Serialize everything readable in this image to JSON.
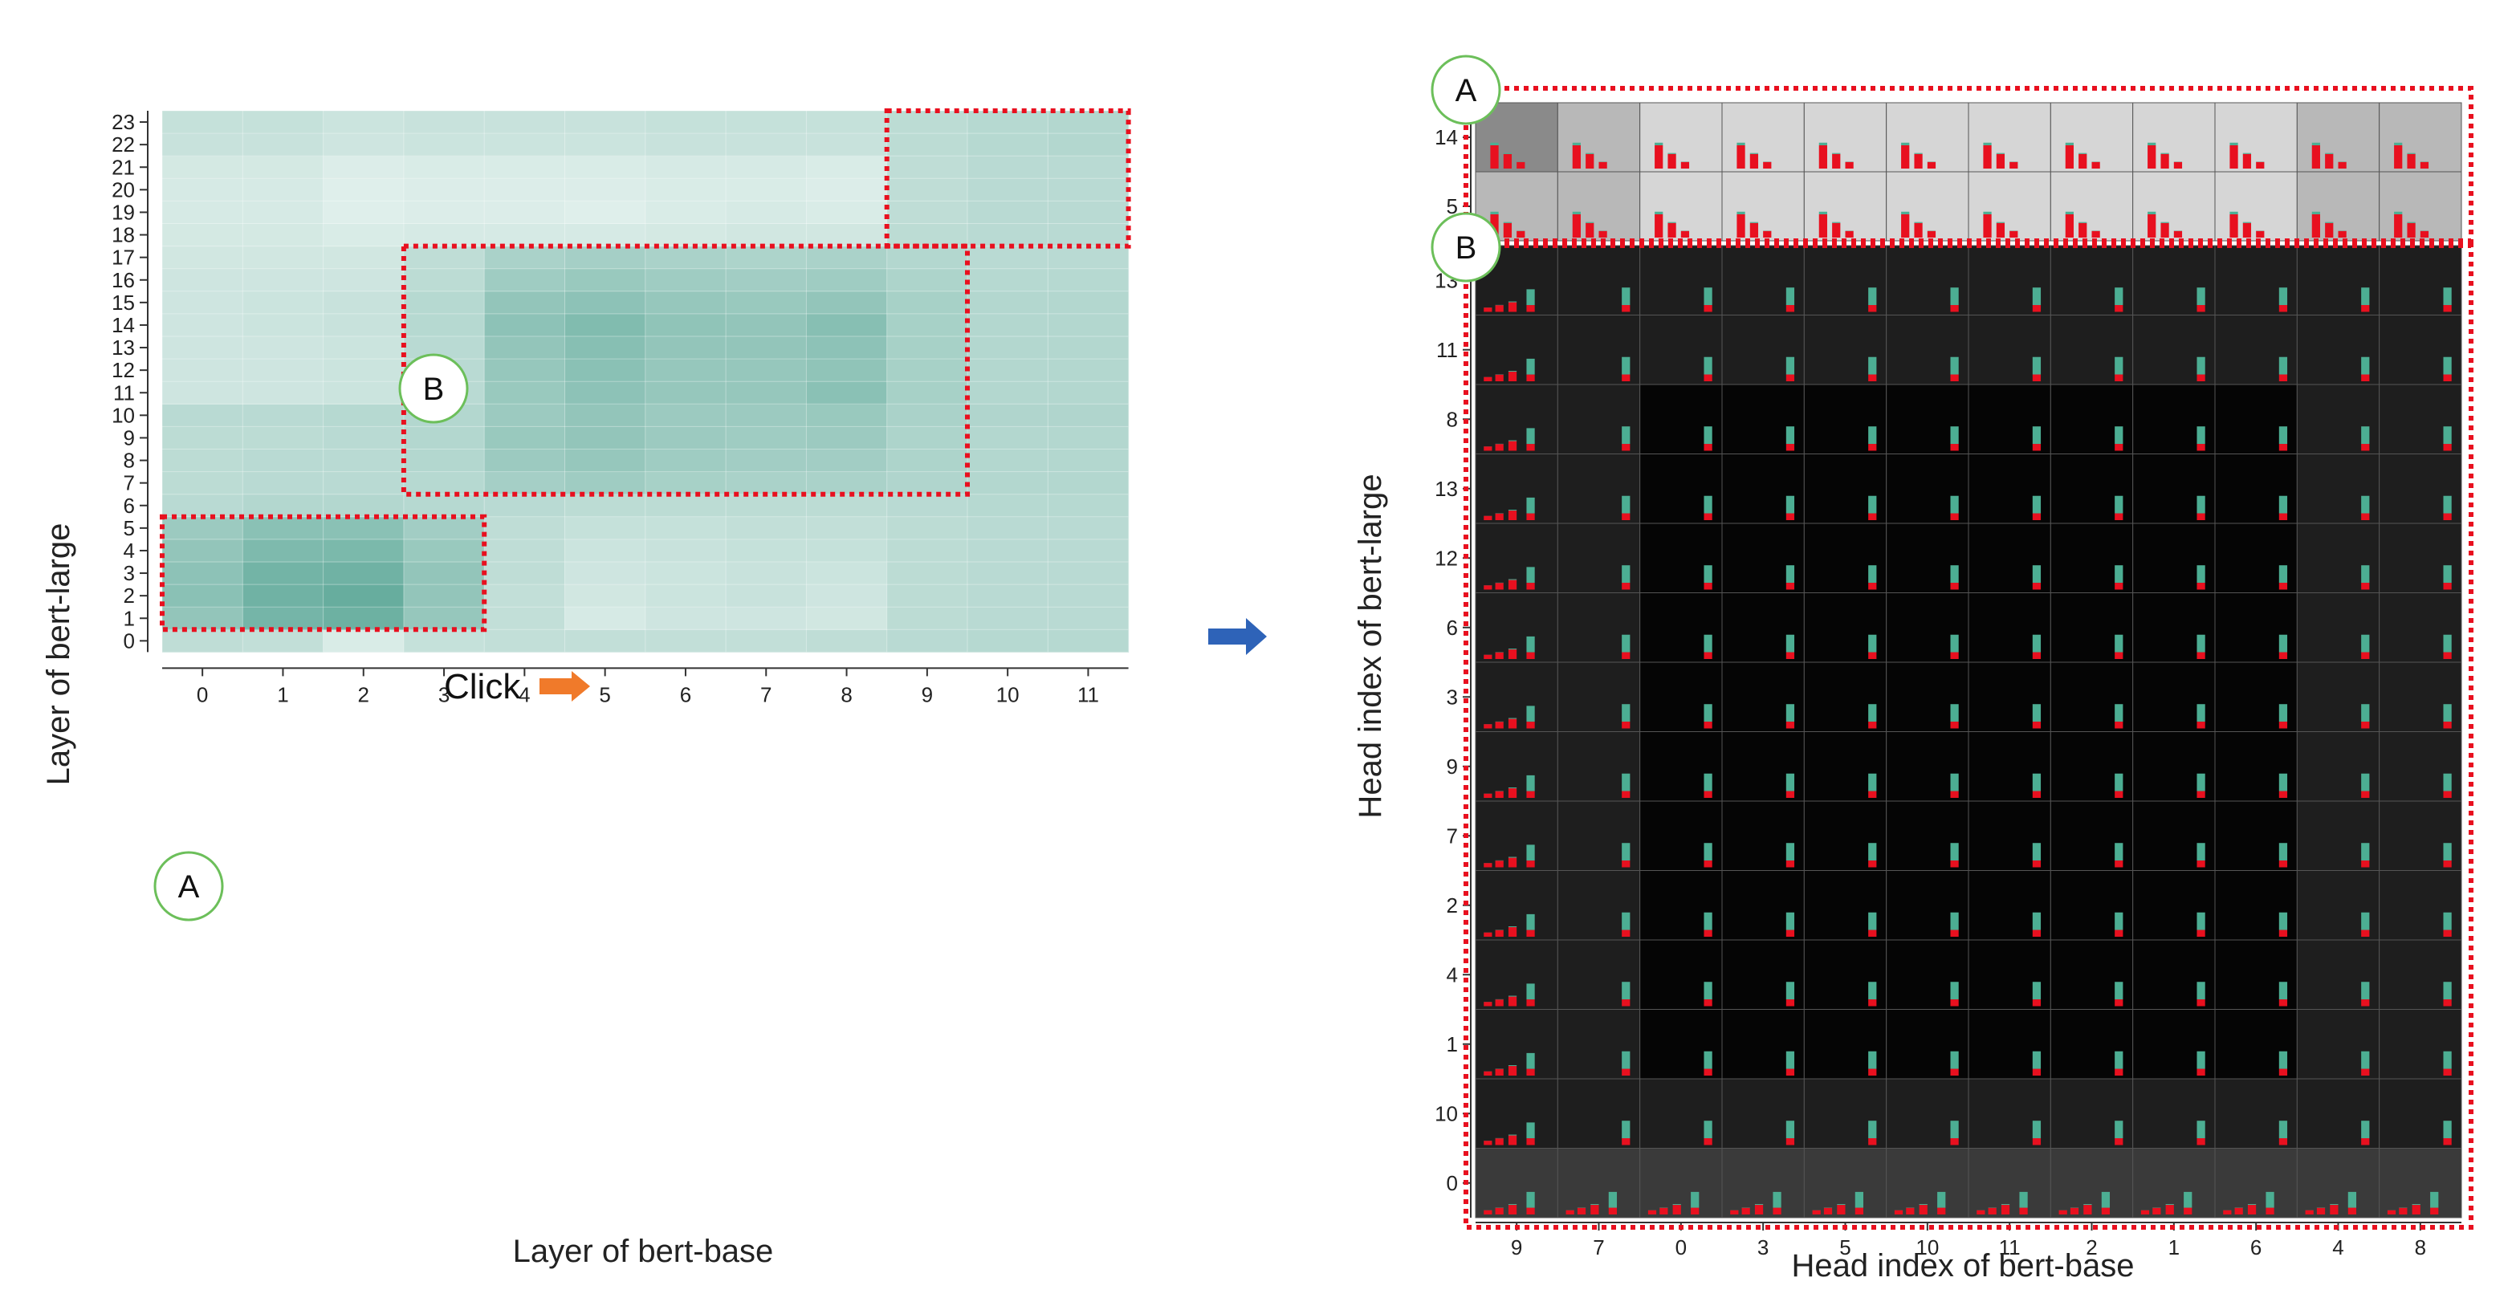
{
  "chart_data": [
    {
      "type": "heatmap",
      "xlabel": "Layer of bert-base",
      "ylabel": "Layer of bert-large",
      "x_ticks": [
        "0",
        "1",
        "2",
        "3",
        "4",
        "5",
        "6",
        "7",
        "8",
        "9",
        "10",
        "11"
      ],
      "y_ticks": [
        "0",
        "1",
        "2",
        "3",
        "4",
        "5",
        "6",
        "7",
        "8",
        "9",
        "10",
        "11",
        "12",
        "13",
        "14",
        "15",
        "16",
        "17",
        "18",
        "19",
        "20",
        "21",
        "22",
        "23"
      ],
      "color_scale": {
        "low": "#eef7f4",
        "high": "#5ba797"
      },
      "values_row_major_y0_to_y23": [
        [
          0.32,
          0.3,
          0.14,
          0.28,
          0.3,
          0.3,
          0.3,
          0.3,
          0.32,
          0.36,
          0.38,
          0.38
        ],
        [
          0.62,
          0.82,
          0.88,
          0.6,
          0.3,
          0.16,
          0.22,
          0.22,
          0.2,
          0.34,
          0.36,
          0.36
        ],
        [
          0.68,
          0.86,
          0.92,
          0.62,
          0.3,
          0.2,
          0.24,
          0.26,
          0.22,
          0.34,
          0.36,
          0.36
        ],
        [
          0.66,
          0.84,
          0.86,
          0.62,
          0.32,
          0.22,
          0.24,
          0.26,
          0.24,
          0.34,
          0.36,
          0.36
        ],
        [
          0.62,
          0.76,
          0.78,
          0.58,
          0.32,
          0.24,
          0.26,
          0.28,
          0.28,
          0.34,
          0.36,
          0.36
        ],
        [
          0.56,
          0.68,
          0.68,
          0.52,
          0.32,
          0.28,
          0.28,
          0.3,
          0.3,
          0.34,
          0.36,
          0.36
        ],
        [
          0.36,
          0.4,
          0.4,
          0.38,
          0.36,
          0.34,
          0.34,
          0.34,
          0.34,
          0.36,
          0.38,
          0.38
        ],
        [
          0.34,
          0.36,
          0.36,
          0.38,
          0.5,
          0.54,
          0.48,
          0.46,
          0.46,
          0.42,
          0.4,
          0.4
        ],
        [
          0.34,
          0.36,
          0.36,
          0.4,
          0.56,
          0.6,
          0.54,
          0.52,
          0.52,
          0.44,
          0.4,
          0.4
        ],
        [
          0.34,
          0.34,
          0.36,
          0.4,
          0.58,
          0.62,
          0.56,
          0.54,
          0.56,
          0.44,
          0.4,
          0.4
        ],
        [
          0.36,
          0.36,
          0.38,
          0.4,
          0.56,
          0.62,
          0.56,
          0.56,
          0.58,
          0.46,
          0.42,
          0.42
        ],
        [
          0.22,
          0.22,
          0.24,
          0.36,
          0.58,
          0.66,
          0.6,
          0.6,
          0.68,
          0.48,
          0.4,
          0.4
        ],
        [
          0.22,
          0.22,
          0.24,
          0.36,
          0.6,
          0.68,
          0.6,
          0.6,
          0.64,
          0.48,
          0.4,
          0.4
        ],
        [
          0.22,
          0.22,
          0.24,
          0.36,
          0.62,
          0.7,
          0.62,
          0.62,
          0.66,
          0.48,
          0.4,
          0.4
        ],
        [
          0.22,
          0.24,
          0.26,
          0.38,
          0.66,
          0.74,
          0.64,
          0.62,
          0.7,
          0.48,
          0.4,
          0.4
        ],
        [
          0.22,
          0.24,
          0.26,
          0.38,
          0.62,
          0.66,
          0.6,
          0.58,
          0.62,
          0.48,
          0.4,
          0.4
        ],
        [
          0.22,
          0.22,
          0.22,
          0.34,
          0.54,
          0.58,
          0.54,
          0.52,
          0.54,
          0.44,
          0.38,
          0.38
        ],
        [
          0.2,
          0.2,
          0.2,
          0.32,
          0.46,
          0.5,
          0.46,
          0.44,
          0.46,
          0.4,
          0.36,
          0.36
        ],
        [
          0.18,
          0.18,
          0.14,
          0.16,
          0.16,
          0.16,
          0.18,
          0.2,
          0.2,
          0.34,
          0.36,
          0.36
        ],
        [
          0.16,
          0.16,
          0.1,
          0.12,
          0.12,
          0.1,
          0.14,
          0.16,
          0.14,
          0.32,
          0.36,
          0.36
        ],
        [
          0.16,
          0.16,
          0.1,
          0.12,
          0.12,
          0.12,
          0.14,
          0.14,
          0.12,
          0.32,
          0.36,
          0.36
        ],
        [
          0.18,
          0.18,
          0.12,
          0.14,
          0.14,
          0.14,
          0.16,
          0.16,
          0.14,
          0.32,
          0.36,
          0.36
        ],
        [
          0.26,
          0.26,
          0.22,
          0.24,
          0.24,
          0.24,
          0.26,
          0.26,
          0.26,
          0.34,
          0.38,
          0.4
        ],
        [
          0.28,
          0.28,
          0.24,
          0.26,
          0.26,
          0.26,
          0.28,
          0.28,
          0.28,
          0.34,
          0.38,
          0.4
        ]
      ],
      "highlight_regions": [
        {
          "label": "A",
          "x_range": [
            "0",
            "3"
          ],
          "y_range": [
            "1",
            "5"
          ]
        },
        {
          "label": "B",
          "x_range": [
            "3",
            "9"
          ],
          "y_range": [
            "7",
            "17"
          ]
        },
        {
          "label": "",
          "x_range": [
            "9",
            "11"
          ],
          "y_range": [
            "18",
            "23"
          ]
        }
      ],
      "annotation": "Click"
    },
    {
      "type": "heatmap",
      "xlabel": "Head index of bert-base",
      "ylabel": "Head index of bert-large",
      "x_ticks": [
        "9",
        "7",
        "0",
        "3",
        "5",
        "10",
        "11",
        "2",
        "1",
        "6",
        "4",
        "8"
      ],
      "y_ticks_top": [
        "14",
        "5"
      ],
      "y_ticks_bottom": [
        "13",
        "11",
        "8",
        "13",
        "12",
        "6",
        "3",
        "9",
        "7",
        "2",
        "4",
        "1",
        "10",
        "0"
      ],
      "cell_content": "bar histogram per cell",
      "bar_colors": {
        "teal": "#4cae93",
        "red": "#e8101f"
      },
      "highlight_regions": [
        {
          "label": "A",
          "rows": [
            "14",
            "5"
          ]
        },
        {
          "label": "B",
          "rows": [
            "13",
            "11",
            "8",
            "13",
            "12",
            "6",
            "3",
            "9",
            "7",
            "2",
            "4",
            "1",
            "10",
            "0"
          ]
        }
      ]
    }
  ],
  "badges": {
    "left_a": "A",
    "left_b": "B",
    "right_a": "A",
    "right_b": "B"
  },
  "colors": {
    "dotted_box": "#e8101f",
    "arrow_blue": "#2e63b8",
    "arrow_orange": "#f07a2a",
    "badge_ring": "#6cbf5a"
  }
}
